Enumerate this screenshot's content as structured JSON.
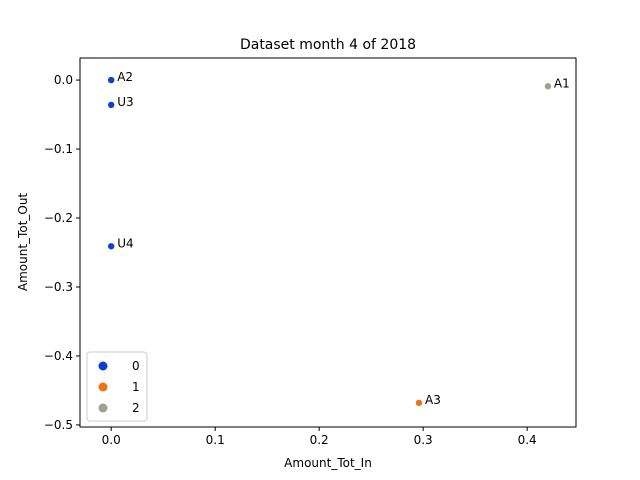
{
  "chart_data": {
    "type": "scatter",
    "title": "Dataset month 4 of 2018",
    "xlabel": "Amount_Tot_In",
    "ylabel": "Amount_Tot_Out",
    "xlim": [
      -0.03,
      0.447
    ],
    "ylim": [
      -0.503,
      0.032
    ],
    "xticks": [
      0.0,
      0.1,
      0.2,
      0.3,
      0.4
    ],
    "xtick_labels": [
      "0.0",
      "0.1",
      "0.2",
      "0.3",
      "0.4"
    ],
    "yticks": [
      0.0,
      -0.1,
      -0.2,
      -0.3,
      -0.4,
      -0.5
    ],
    "ytick_labels": [
      "0.0",
      "−0.1",
      "−0.2",
      "−0.3",
      "−0.4",
      "−0.5"
    ],
    "grid": false,
    "legend_position": "lower-left",
    "legend": [
      {
        "label": "0",
        "color": "#0b3fd1"
      },
      {
        "label": "1",
        "color": "#ef7215"
      },
      {
        "label": "2",
        "color": "#a19f8f"
      }
    ],
    "points": [
      {
        "label": "A2",
        "x": 0.0,
        "y": 0.0,
        "group": "0"
      },
      {
        "label": "U3",
        "x": 0.0,
        "y": -0.036,
        "group": "0"
      },
      {
        "label": "U4",
        "x": 0.0,
        "y": -0.241,
        "group": "0"
      },
      {
        "label": "A1",
        "x": 0.42,
        "y": -0.009,
        "group": "2"
      },
      {
        "label": "A3",
        "x": 0.296,
        "y": -0.468,
        "group": "1"
      }
    ]
  }
}
